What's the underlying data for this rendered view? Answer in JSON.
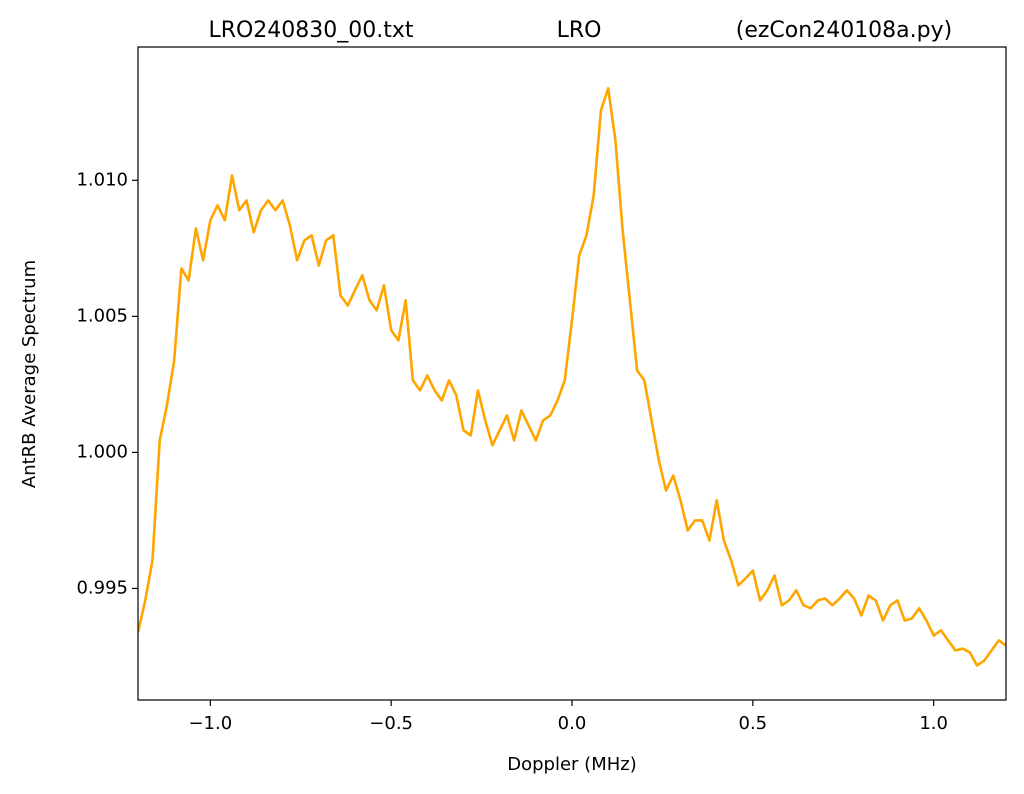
{
  "chart_data": {
    "type": "line",
    "title": [
      "LRO240830_00.txt",
      "LRO",
      "(ezCon240108a.py)"
    ],
    "x_label": "Doppler (MHz)",
    "y_label": "AntRB Average Spectrum",
    "xlim": [
      -1.2,
      1.2
    ],
    "ylim": [
      0.9909,
      1.0149
    ],
    "xticks": [
      {
        "value": -1.0,
        "label": "−1.0"
      },
      {
        "value": -0.5,
        "label": "−0.5"
      },
      {
        "value": 0,
        "label": "0.0"
      },
      0.5,
      {
        "value": 1.0,
        "label": "1.0"
      }
    ],
    "yticks": [
      {
        "value": 0.995,
        "label": "0.995"
      },
      {
        "value": 1,
        "label": "1.000"
      },
      {
        "value": 1.005,
        "label": "1.005"
      },
      {
        "value": 1.01,
        "label": "1.010"
      }
    ],
    "grid": false,
    "x": [
      -1.2,
      -1.18,
      -1.16,
      -1.14,
      -1.12,
      -1.1,
      -1.08,
      -1.06,
      -1.04,
      -1.02,
      -1.0,
      -0.98,
      -0.96,
      -0.94,
      -0.92,
      -0.9,
      -0.88,
      -0.86,
      -0.84,
      -0.82,
      -0.8,
      -0.78,
      -0.76,
      -0.74,
      -0.72,
      -0.7,
      -0.68,
      -0.66,
      -0.64,
      -0.62,
      -0.6,
      -0.58,
      -0.56,
      -0.54,
      -0.52,
      -0.5,
      -0.48,
      -0.46,
      -0.44,
      -0.42,
      -0.4,
      -0.38,
      -0.36,
      -0.34,
      -0.32,
      -0.3,
      -0.28,
      -0.26,
      -0.24,
      -0.22,
      -0.2,
      -0.18,
      -0.16,
      -0.14,
      -0.12,
      -0.1,
      -0.08,
      -0.06,
      -0.04,
      -0.02,
      0.0,
      0.02,
      0.04,
      0.06,
      0.08,
      0.1,
      0.12,
      0.14,
      0.16,
      0.18,
      0.2,
      0.22,
      0.24,
      0.26,
      0.28,
      0.3,
      0.32,
      0.34,
      0.36,
      0.38,
      0.4,
      0.42,
      0.44,
      0.46,
      0.48,
      0.5,
      0.52,
      0.54,
      0.56,
      0.58,
      0.6,
      0.62,
      0.64,
      0.66,
      0.68,
      0.7,
      0.72,
      0.74,
      0.76,
      0.78,
      0.8,
      0.82,
      0.84,
      0.86,
      0.88,
      0.9,
      0.92,
      0.94,
      0.96,
      0.98,
      1.0,
      1.02,
      1.04,
      1.06,
      1.08,
      1.1,
      1.12,
      1.14,
      1.16,
      1.18,
      1.2
    ],
    "series": [
      {
        "color": "#ffa500",
        "values": [
          0.99338,
          0.99456,
          0.99603,
          1.00044,
          1.00173,
          1.00338,
          1.00676,
          1.00632,
          1.00823,
          1.00706,
          1.00853,
          1.00908,
          1.00853,
          1.01018,
          1.0089,
          1.00926,
          1.00809,
          1.0089,
          1.00926,
          1.0089,
          1.00926,
          1.00834,
          1.00706,
          1.00779,
          1.00798,
          1.00687,
          1.00779,
          1.00798,
          1.00577,
          1.0054,
          1.00596,
          1.00651,
          1.00559,
          1.00522,
          1.00614,
          1.00449,
          1.00412,
          1.00559,
          1.00265,
          1.00228,
          1.00283,
          1.00228,
          1.00191,
          1.00265,
          1.0021,
          1.00081,
          1.00062,
          1.00228,
          1.00118,
          1.00026,
          1.00081,
          1.00136,
          1.00044,
          1.00154,
          1.00099,
          1.00044,
          1.00118,
          1.00136,
          1.00191,
          1.00265,
          1.00485,
          1.00724,
          1.00798,
          1.00945,
          1.01257,
          1.01338,
          1.01147,
          1.00816,
          1.00559,
          1.00301,
          1.00265,
          1.00118,
          0.99971,
          0.9986,
          0.99915,
          0.99824,
          0.99713,
          0.9975,
          0.9975,
          0.99676,
          0.99824,
          0.99676,
          0.99603,
          0.99511,
          0.99537,
          0.99566,
          0.99456,
          0.99493,
          0.99548,
          0.99438,
          0.99456,
          0.99493,
          0.99438,
          0.99427,
          0.99456,
          0.99463,
          0.99438,
          0.99463,
          0.99493,
          0.99463,
          0.99401,
          0.99474,
          0.99456,
          0.99382,
          0.99438,
          0.99456,
          0.99382,
          0.9939,
          0.99427,
          0.99382,
          0.99327,
          0.99346,
          0.99309,
          0.99272,
          0.99279,
          0.99265,
          0.99217,
          0.99235,
          0.99272,
          0.99309,
          0.9929
        ]
      }
    ]
  }
}
